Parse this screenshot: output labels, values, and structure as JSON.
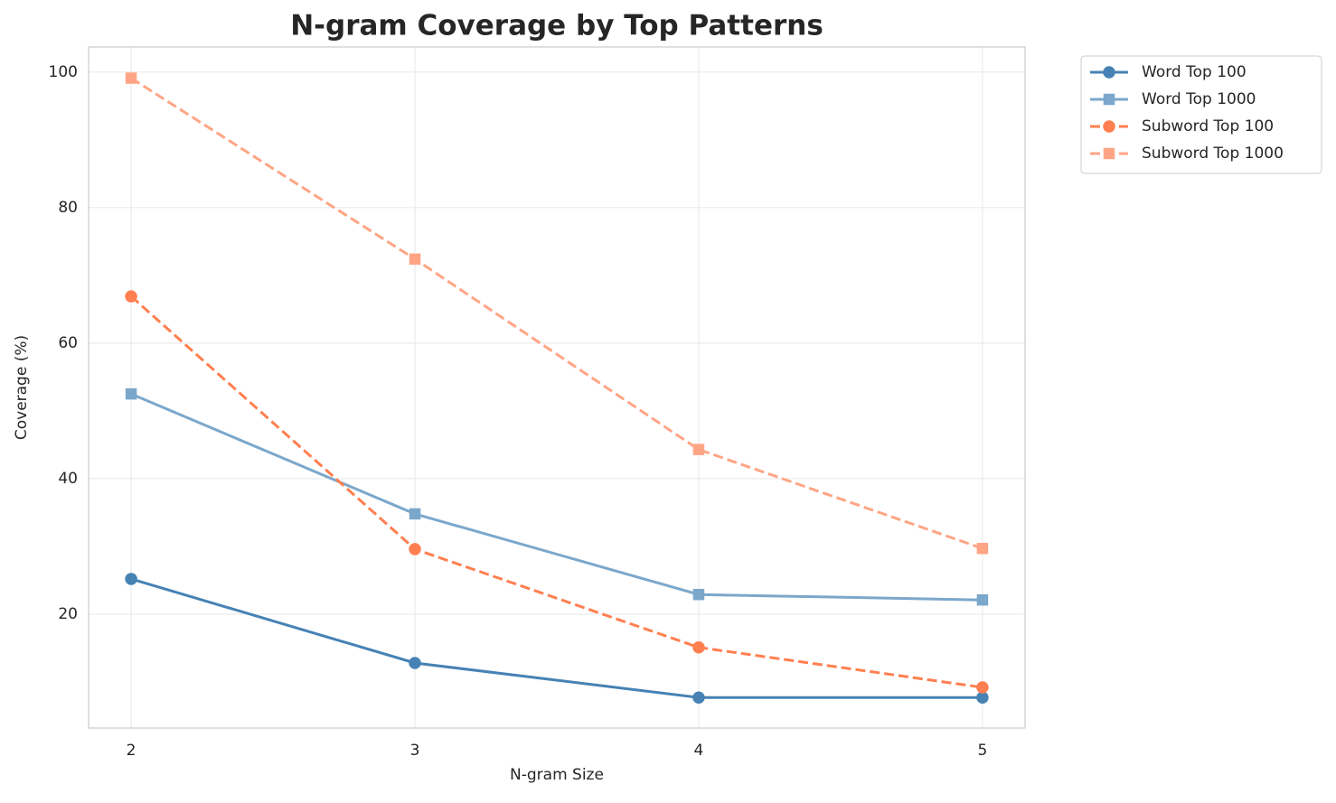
{
  "chart_data": {
    "type": "line",
    "title": "N-gram Coverage by Top Patterns",
    "xlabel": "N-gram Size",
    "ylabel": "Coverage (%)",
    "x": [
      2,
      3,
      4,
      5
    ],
    "series": [
      {
        "name": "Word Top 100",
        "color": "#4682b4",
        "marker": "circle",
        "linestyle": "solid",
        "values": [
          25.2,
          12.8,
          7.7,
          7.7
        ]
      },
      {
        "name": "Word Top 1000",
        "color": "#7ba7cb",
        "marker": "square",
        "linestyle": "solid",
        "values": [
          52.5,
          34.8,
          22.9,
          22.1
        ]
      },
      {
        "name": "Subword Top 100",
        "color": "#ff7f50",
        "marker": "circle",
        "linestyle": "dashed",
        "values": [
          66.9,
          29.6,
          15.1,
          9.2
        ]
      },
      {
        "name": "Subword Top 1000",
        "color": "#ffa585",
        "marker": "square",
        "linestyle": "dashed",
        "values": [
          99.1,
          72.4,
          44.3,
          29.7
        ]
      }
    ],
    "xlim": [
      1.85,
      5.15
    ],
    "ylim": [
      3.2,
      103.7
    ],
    "xticks": [
      2,
      3,
      4,
      5
    ],
    "yticks": [
      20,
      40,
      60,
      80,
      100
    ],
    "grid": true,
    "legend": "outside-upper-right"
  }
}
